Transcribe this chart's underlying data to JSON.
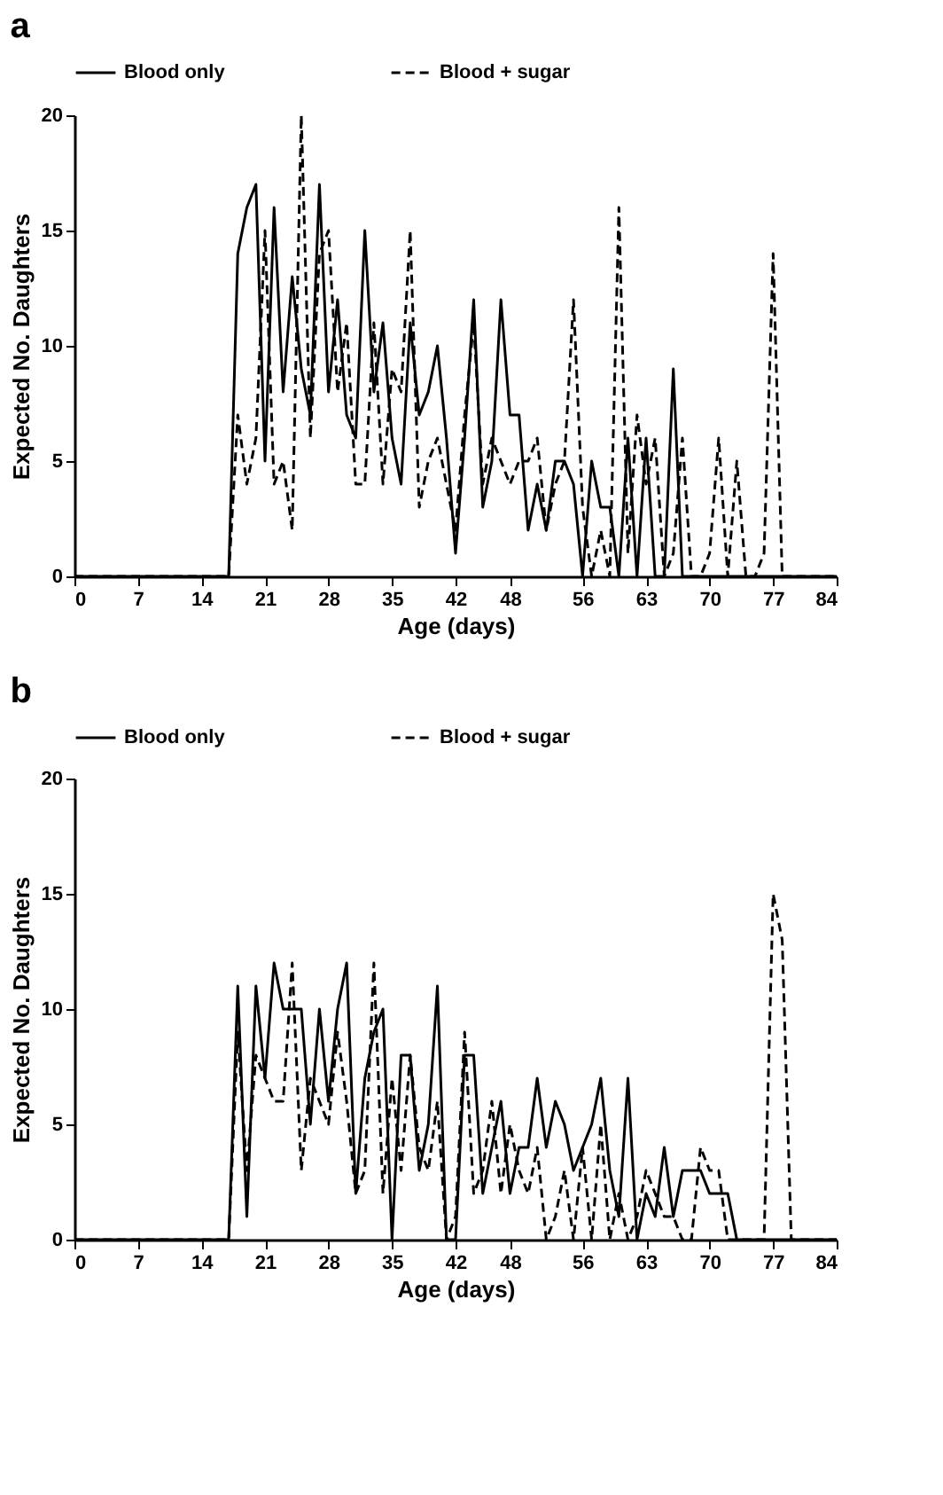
{
  "chart_data": [
    {
      "type": "line",
      "title": "a",
      "xlabel": "Age (days)",
      "ylabel": "Expected No. Daughters",
      "legend": "top",
      "xlim": [
        0,
        84
      ],
      "ylim": [
        0,
        20
      ],
      "xticks": [
        0,
        7,
        14,
        21,
        28,
        35,
        42,
        48,
        56,
        63,
        70,
        77,
        84
      ],
      "yticks": [
        0,
        5,
        10,
        15,
        20
      ],
      "x": [
        0,
        1,
        2,
        3,
        4,
        5,
        6,
        7,
        8,
        9,
        10,
        11,
        12,
        13,
        14,
        15,
        16,
        17,
        18,
        19,
        20,
        21,
        22,
        23,
        24,
        25,
        26,
        27,
        28,
        29,
        30,
        31,
        32,
        33,
        34,
        35,
        36,
        37,
        38,
        39,
        40,
        41,
        42,
        43,
        44,
        45,
        46,
        47,
        48,
        49,
        50,
        51,
        52,
        53,
        54,
        55,
        56,
        57,
        58,
        59,
        60,
        61,
        62,
        63,
        64,
        65,
        66,
        67,
        68,
        69,
        70,
        71,
        72,
        73,
        74,
        75,
        76,
        77,
        78,
        79,
        80,
        81,
        82,
        83,
        84
      ],
      "series": [
        {
          "name": "Blood only",
          "color": "#000000",
          "line_style": "solid",
          "values": [
            0,
            0,
            0,
            0,
            0,
            0,
            0,
            0,
            0,
            0,
            0,
            0,
            0,
            0,
            0,
            0,
            0,
            0,
            14,
            16,
            17,
            5,
            16,
            8,
            13,
            9,
            7,
            17,
            8,
            12,
            7,
            6,
            15,
            8,
            11,
            6,
            4,
            11,
            7,
            8,
            10,
            6,
            1,
            6,
            12,
            3,
            5,
            12,
            7,
            7,
            2,
            4,
            2,
            5,
            5,
            4,
            0,
            5,
            3,
            3,
            0,
            6,
            0,
            6,
            0,
            0,
            9,
            0,
            0,
            0,
            0,
            0,
            0,
            0,
            0,
            0,
            0,
            0,
            0,
            0,
            0,
            0,
            0,
            0,
            0
          ]
        },
        {
          "name": "Blood + sugar",
          "color": "#000000",
          "line_style": "dashed",
          "values": [
            0,
            0,
            0,
            0,
            0,
            0,
            0,
            0,
            0,
            0,
            0,
            0,
            0,
            0,
            0,
            0,
            0,
            0,
            7,
            4,
            6,
            15,
            4,
            5,
            2,
            20,
            6,
            14,
            15,
            8,
            11,
            4,
            4,
            11,
            4,
            9,
            8,
            15,
            3,
            5,
            6,
            4,
            2,
            7,
            11,
            4,
            6,
            5,
            4,
            5,
            5,
            6,
            2,
            4,
            5,
            12,
            3,
            0,
            2,
            0,
            16,
            1,
            7,
            4,
            6,
            0,
            1,
            6,
            0,
            0,
            1,
            6,
            0,
            5,
            0,
            0,
            1,
            14,
            0,
            0,
            0,
            0,
            0,
            0,
            0
          ]
        }
      ]
    },
    {
      "type": "line",
      "title": "b",
      "xlabel": "Age (days)",
      "ylabel": "Expected No. Daughters",
      "legend": "top",
      "xlim": [
        0,
        84
      ],
      "ylim": [
        0,
        20
      ],
      "xticks": [
        0,
        7,
        14,
        21,
        28,
        35,
        42,
        48,
        56,
        63,
        70,
        77,
        84
      ],
      "yticks": [
        0,
        5,
        10,
        15,
        20
      ],
      "x": [
        0,
        1,
        2,
        3,
        4,
        5,
        6,
        7,
        8,
        9,
        10,
        11,
        12,
        13,
        14,
        15,
        16,
        17,
        18,
        19,
        20,
        21,
        22,
        23,
        24,
        25,
        26,
        27,
        28,
        29,
        30,
        31,
        32,
        33,
        34,
        35,
        36,
        37,
        38,
        39,
        40,
        41,
        42,
        43,
        44,
        45,
        46,
        47,
        48,
        49,
        50,
        51,
        52,
        53,
        54,
        55,
        56,
        57,
        58,
        59,
        60,
        61,
        62,
        63,
        64,
        65,
        66,
        67,
        68,
        69,
        70,
        71,
        72,
        73,
        74,
        75,
        76,
        77,
        78,
        79,
        80,
        81,
        82,
        83,
        84
      ],
      "series": [
        {
          "name": "Blood only",
          "color": "#000000",
          "line_style": "solid",
          "values": [
            0,
            0,
            0,
            0,
            0,
            0,
            0,
            0,
            0,
            0,
            0,
            0,
            0,
            0,
            0,
            0,
            0,
            0,
            11,
            1,
            11,
            7,
            12,
            10,
            10,
            10,
            5,
            10,
            6,
            10,
            12,
            2,
            7,
            9,
            10,
            0,
            8,
            8,
            3,
            5,
            11,
            0,
            0,
            8,
            8,
            2,
            4,
            6,
            2,
            4,
            4,
            7,
            4,
            6,
            5,
            3,
            4,
            5,
            7,
            3,
            1,
            7,
            0,
            2,
            1,
            4,
            1,
            3,
            3,
            3,
            2,
            2,
            2,
            0,
            0,
            0,
            0,
            0,
            0,
            0,
            0,
            0,
            0,
            0,
            0
          ]
        },
        {
          "name": "Blood + sugar",
          "color": "#000000",
          "line_style": "dashed",
          "values": [
            0,
            0,
            0,
            0,
            0,
            0,
            0,
            0,
            0,
            0,
            0,
            0,
            0,
            0,
            0,
            0,
            0,
            0,
            9,
            3,
            8,
            7,
            6,
            6,
            12,
            3,
            7,
            6,
            5,
            9,
            6,
            2,
            3,
            12,
            2,
            7,
            3,
            8,
            4,
            3,
            6,
            0,
            1,
            9,
            2,
            3,
            6,
            2,
            5,
            3,
            2,
            4,
            0,
            1,
            3,
            0,
            4,
            0,
            5,
            0,
            2,
            0,
            1,
            3,
            2,
            1,
            1,
            0,
            0,
            4,
            3,
            3,
            0,
            0,
            0,
            0,
            0,
            15,
            13,
            0,
            0,
            0,
            0,
            0,
            0
          ]
        }
      ]
    }
  ]
}
